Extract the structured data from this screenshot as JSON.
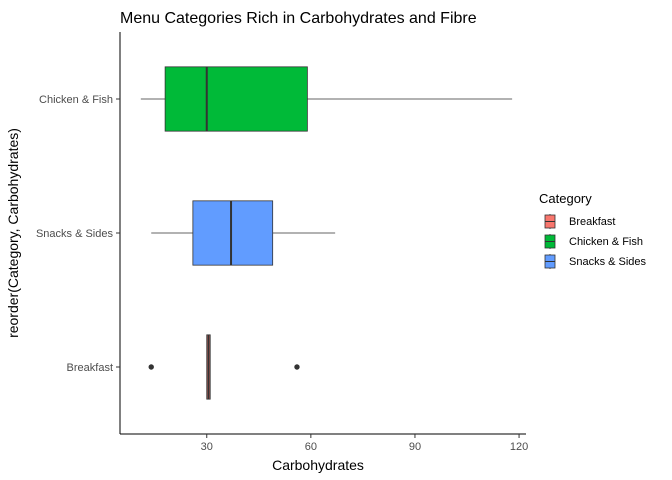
{
  "chart_data": {
    "type": "boxplot",
    "orientation": "horizontal",
    "title": "Menu Categories Rich in Carbohydrates and Fibre",
    "xlabel": "Carbohydrates",
    "ylabel": "reorder(Category, Carbohydrates)",
    "xlim": [
      5,
      122
    ],
    "xticks": [
      30,
      60,
      90,
      120
    ],
    "grid": false,
    "legend": {
      "title": "Category",
      "position": "right",
      "entries": [
        "Breakfast",
        "Chicken & Fish",
        "Snacks & Sides"
      ]
    },
    "categories": [
      "Breakfast",
      "Snacks & Sides",
      "Chicken & Fish"
    ],
    "boxes": [
      {
        "name": "Breakfast",
        "color": "#F8766D",
        "whisker_low": 30,
        "q1": 30,
        "median": 30.5,
        "q3": 31,
        "whisker_high": 31,
        "outliers": [
          14,
          56
        ]
      },
      {
        "name": "Snacks & Sides",
        "color": "#619CFF",
        "whisker_low": 14,
        "q1": 26,
        "median": 37,
        "q3": 49,
        "whisker_high": 67
      },
      {
        "name": "Chicken & Fish",
        "color": "#00BA38",
        "whisker_low": 11,
        "q1": 18,
        "median": 30,
        "q3": 59,
        "whisker_high": 118
      }
    ]
  }
}
